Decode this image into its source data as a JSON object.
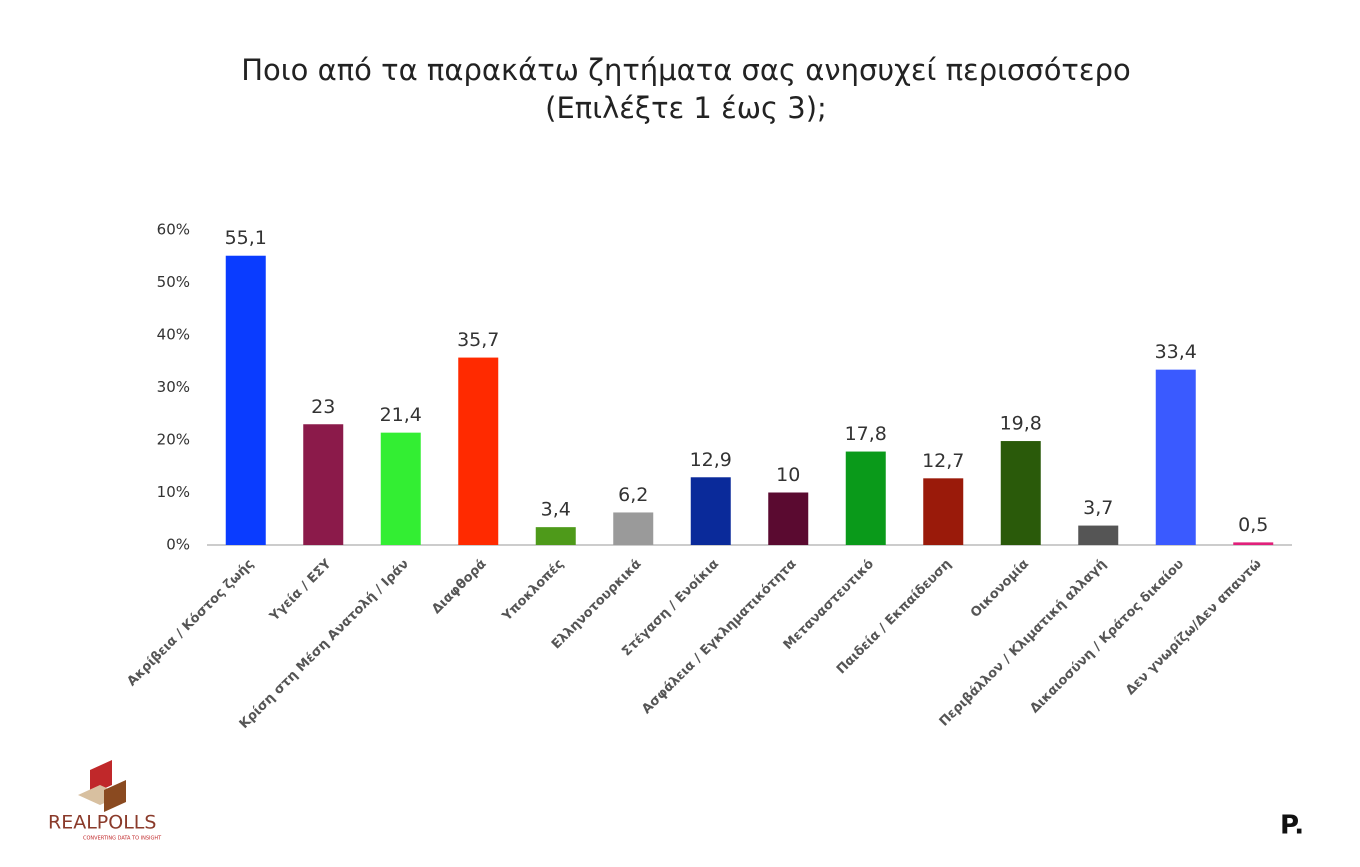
{
  "chart_data": {
    "type": "bar",
    "title": [
      "Ποιο από τα παρακάτω ζητήματα σας ανησυχεί περισσότερο",
      "(Επιλέξτε 1 έως 3);"
    ],
    "categories": [
      "Ακρίβεια / Κόστος ζωής",
      "Υγεία / ΕΣΥ",
      "Κρίση στη Μέση Ανατολή / Ιράν",
      "Διαφθορά",
      "Υποκλοπές",
      "Ελληνοτουρκικά",
      "Στέγαση / Ενοίκια",
      "Ασφάλεια / Εγκληματικότητα",
      "Μεταναστευτικό",
      "Παιδεία / Εκπαίδευση",
      "Οικονομία",
      "Περιβάλλον / Κλιματική αλλαγή",
      "Δικαιοσύνη / Κράτος δικαίου",
      "Δεν γνωρίζω/Δεν απαντώ"
    ],
    "values": [
      55.1,
      23,
      21.4,
      35.7,
      3.4,
      6.2,
      12.9,
      10,
      17.8,
      12.7,
      19.8,
      3.7,
      33.4,
      0.5
    ],
    "value_labels": [
      "55,1",
      "23",
      "21,4",
      "35,7",
      "3,4",
      "6,2",
      "12,9",
      "10",
      "17,8",
      "12,7",
      "19,8",
      "3,7",
      "33,4",
      "0,5"
    ],
    "colors": [
      "#0a3cff",
      "#8b1a4a",
      "#33ee33",
      "#ff2a00",
      "#4e9a1a",
      "#9a9a9a",
      "#0a2a9a",
      "#5a0a30",
      "#0a9a1a",
      "#9a1a0a",
      "#2a5a0a",
      "#555555",
      "#3a5aff",
      "#e0207a"
    ],
    "ylim": [
      0,
      60
    ],
    "yticks": [
      {
        "value": 0,
        "label": "0%"
      },
      {
        "value": 10,
        "label": "10%"
      },
      {
        "value": 20,
        "label": "20%"
      },
      {
        "value": 30,
        "label": "30%"
      },
      {
        "value": 40,
        "label": "40%"
      },
      {
        "value": 50,
        "label": "50%"
      },
      {
        "value": 60,
        "label": "60%"
      }
    ],
    "grid": false
  },
  "logos": {
    "realpolls": "REALPOLLS",
    "tagline": "CONVERTING DATA TO INSIGHT",
    "corner": "P."
  }
}
